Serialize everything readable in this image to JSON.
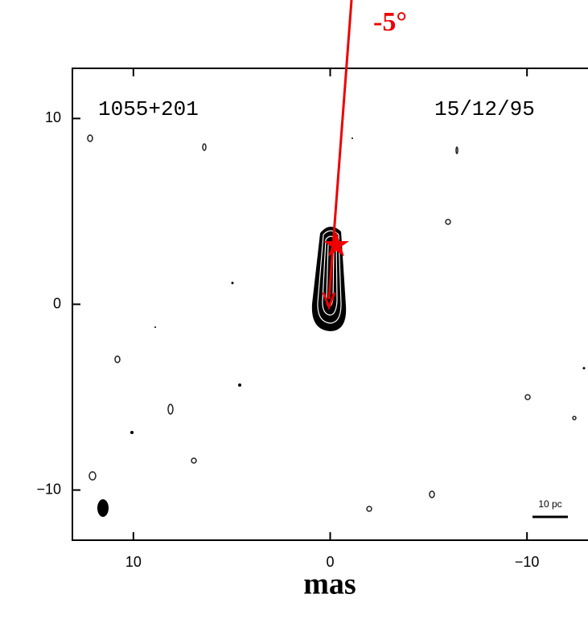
{
  "chart_data": {
    "type": "map",
    "title": "1055+201",
    "subtitle": "15/12/95",
    "x_label": "mas",
    "annotations": [
      "-5°",
      "10 pc"
    ],
    "xlim": [
      13.1,
      -13.1
    ],
    "ylim": [
      -12.7,
      12.7
    ],
    "xticks": [
      10,
      0,
      {
        "value": -10,
        "label": "−10"
      }
    ],
    "yticks": [
      {
        "value": -10,
        "label": "−10"
      },
      0,
      10
    ],
    "color": "#000000"
  }
}
